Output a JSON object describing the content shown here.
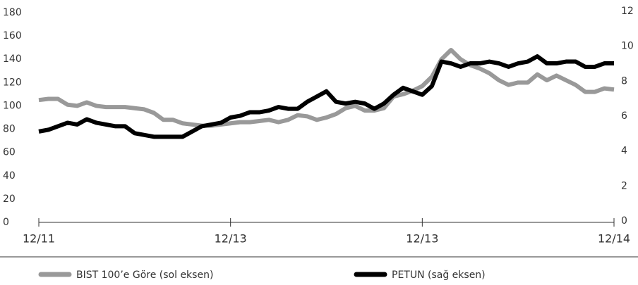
{
  "chart_data": {
    "type": "line",
    "x": [
      0,
      1,
      2,
      3,
      4,
      5,
      6,
      7,
      8,
      9,
      10,
      11,
      12,
      13,
      14,
      15,
      16,
      17,
      18,
      19,
      20,
      21,
      22,
      23,
      24,
      25,
      26,
      27,
      28,
      29,
      30,
      31,
      32,
      33,
      34,
      35,
      36,
      37,
      38,
      39,
      40,
      41,
      42,
      43,
      44,
      45,
      46,
      47,
      48,
      49,
      50,
      51,
      52,
      53,
      54,
      55,
      56,
      57,
      58,
      59,
      60
    ],
    "xlim": [
      0,
      60
    ],
    "xticks": [
      {
        "value": 0,
        "label": "12/11"
      },
      {
        "value": 20,
        "label": "12/13"
      },
      {
        "value": 40,
        "label": "12/13"
      },
      {
        "value": 60,
        "label": "12/14"
      }
    ],
    "ylim": [
      0,
      180
    ],
    "yticks": [
      0,
      20,
      40,
      60,
      80,
      100,
      120,
      140,
      160,
      180
    ],
    "y2lim": [
      0,
      12
    ],
    "y2ticks": [
      0,
      2,
      4,
      6,
      8,
      10,
      12
    ],
    "legend": "bottom",
    "series": [
      {
        "name": "BIST 100’e Göre (sol eksen)",
        "color": "#999999",
        "values": [
          105,
          106,
          106,
          101,
          100,
          103,
          100,
          99,
          99,
          99,
          98,
          97,
          94,
          88,
          88,
          85,
          84,
          83,
          83,
          84,
          85,
          86,
          86,
          87,
          88,
          86,
          88,
          92,
          91,
          88,
          90,
          93,
          98,
          100,
          96,
          96,
          98,
          108,
          110,
          113,
          117,
          125,
          140,
          148,
          140,
          135,
          132,
          128,
          122,
          118,
          120,
          120,
          127,
          122,
          126,
          122,
          118,
          112,
          112,
          115,
          114
        ]
      },
      {
        "name": "PETUN (sağ eksen)",
        "color": "#000000",
        "axis": "y2",
        "values": [
          5.2,
          5.3,
          5.5,
          5.7,
          5.6,
          5.9,
          5.7,
          5.6,
          5.5,
          5.5,
          5.1,
          5.0,
          4.9,
          4.9,
          4.9,
          4.9,
          5.2,
          5.5,
          5.6,
          5.7,
          6.0,
          6.1,
          6.3,
          6.3,
          6.4,
          6.6,
          6.5,
          6.5,
          6.9,
          7.2,
          7.5,
          6.9,
          6.8,
          6.9,
          6.8,
          6.5,
          6.8,
          7.3,
          7.7,
          7.5,
          7.3,
          7.8,
          9.2,
          9.1,
          8.9,
          9.1,
          9.1,
          9.2,
          9.1,
          8.9,
          9.1,
          9.2,
          9.5,
          9.1,
          9.1,
          9.2,
          9.2,
          8.9,
          8.9,
          9.1,
          9.1
        ]
      }
    ]
  }
}
